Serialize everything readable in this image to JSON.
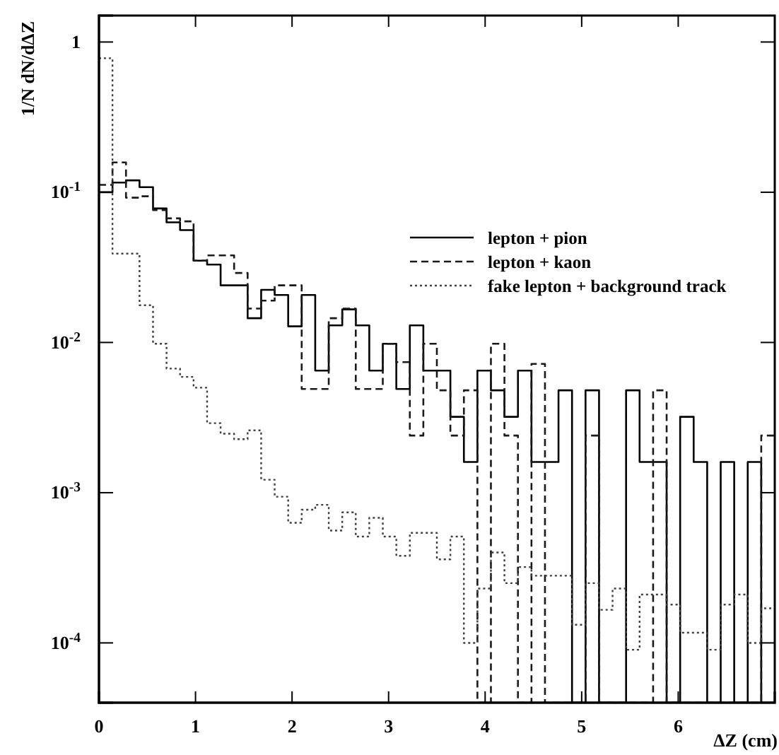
{
  "chart_data": {
    "type": "histogram",
    "xlabel": "ΔZ (cm)",
    "ylabel": "1/N dN/dΔZ",
    "bins": [
      0,
      0.14,
      0.28,
      0.42,
      0.56,
      0.7,
      0.84,
      0.98,
      1.12,
      1.26,
      1.4,
      1.54,
      1.68,
      1.82,
      1.96,
      2.1,
      2.24,
      2.38,
      2.52,
      2.66,
      2.8,
      2.94,
      3.08,
      3.22,
      3.36,
      3.5,
      3.64,
      3.78,
      3.92,
      4.06,
      4.2,
      4.34,
      4.48,
      4.62,
      4.76,
      4.9,
      5.04,
      5.18,
      5.32,
      5.46,
      5.6,
      5.74,
      5.88,
      6.02,
      6.16,
      6.3,
      6.44,
      6.58,
      6.72,
      6.86,
      7.0
    ],
    "series": [
      {
        "name": "lepton + pion",
        "color": "#000000",
        "line_style": "solid",
        "values": [
          0.1,
          0.116,
          0.12,
          0.108,
          0.078,
          0.063,
          0.056,
          0.035,
          0.033,
          0.024,
          0.024,
          0.0145,
          0.0224,
          0.0207,
          0.0128,
          0.0207,
          0.0065,
          0.013,
          0.0166,
          0.013,
          0.0065,
          0.0098,
          0.0049,
          0.013,
          0.0065,
          0.0065,
          0.0032,
          0.0016,
          0.0065,
          0.0048,
          0.0032,
          0.0065,
          0.0016,
          0.0016,
          0.0048,
          null,
          0.0048,
          null,
          null,
          0.0048,
          0.0016,
          0.0016,
          null,
          0.0032,
          0.0016,
          null,
          0.0016,
          null,
          0.0016,
          null
        ]
      },
      {
        "name": "lepton + kaon",
        "color": "#1a1a1a",
        "line_style": "dashed",
        "values": [
          0.112,
          0.158,
          0.092,
          0.094,
          0.076,
          0.067,
          0.064,
          0.035,
          0.038,
          0.038,
          0.029,
          0.0168,
          0.019,
          0.024,
          0.024,
          0.0049,
          0.0049,
          0.0145,
          0.0168,
          0.0049,
          0.0049,
          0.0098,
          0.0074,
          0.0024,
          0.0098,
          0.0048,
          0.0024,
          0.0048,
          null,
          0.0098,
          0.0024,
          null,
          0.0072,
          null,
          null,
          null,
          0.0024,
          null,
          null,
          null,
          null,
          0.0048,
          null,
          null,
          null,
          null,
          null,
          null,
          null,
          0.0024
        ]
      },
      {
        "name": "fake lepton + background track",
        "color": "#404040",
        "line_style": "dotted",
        "values": [
          0.78,
          0.039,
          0.039,
          0.0177,
          0.0098,
          0.0067,
          0.0059,
          0.005,
          0.0029,
          0.00247,
          0.00227,
          0.0026,
          0.00122,
          0.00094,
          0.00063,
          0.00077,
          0.00083,
          0.00056,
          0.00074,
          0.00051,
          0.00068,
          0.00051,
          0.00038,
          0.00054,
          0.00054,
          0.00036,
          0.00051,
          0.0001,
          0.00023,
          0.0004,
          0.00025,
          0.00032,
          0.00028,
          0.00028,
          0.00028,
          0.000132,
          0.00025,
          0.000166,
          0.00023,
          9e-05,
          0.00021,
          0.00021,
          0.00018,
          0.000117,
          0.000117,
          9e-05,
          0.00018,
          0.00021,
          0.0001,
          0.00017
        ]
      }
    ],
    "xlim": [
      0,
      7
    ],
    "xticks": [
      0,
      1,
      2,
      3,
      4,
      5,
      6
    ],
    "ylim": [
      4e-05,
      1.5
    ],
    "log": true,
    "yticks": [
      {
        "value": 0.0001,
        "label": "10$^{-4}$"
      },
      {
        "value": 0.001,
        "label": "10$^{-3}$"
      },
      {
        "value": 0.01,
        "label": "10$^{-2}$"
      },
      {
        "value": 0.1,
        "label": "10$^{-1}$"
      },
      1
    ],
    "legend": "top right",
    "grid": false
  }
}
